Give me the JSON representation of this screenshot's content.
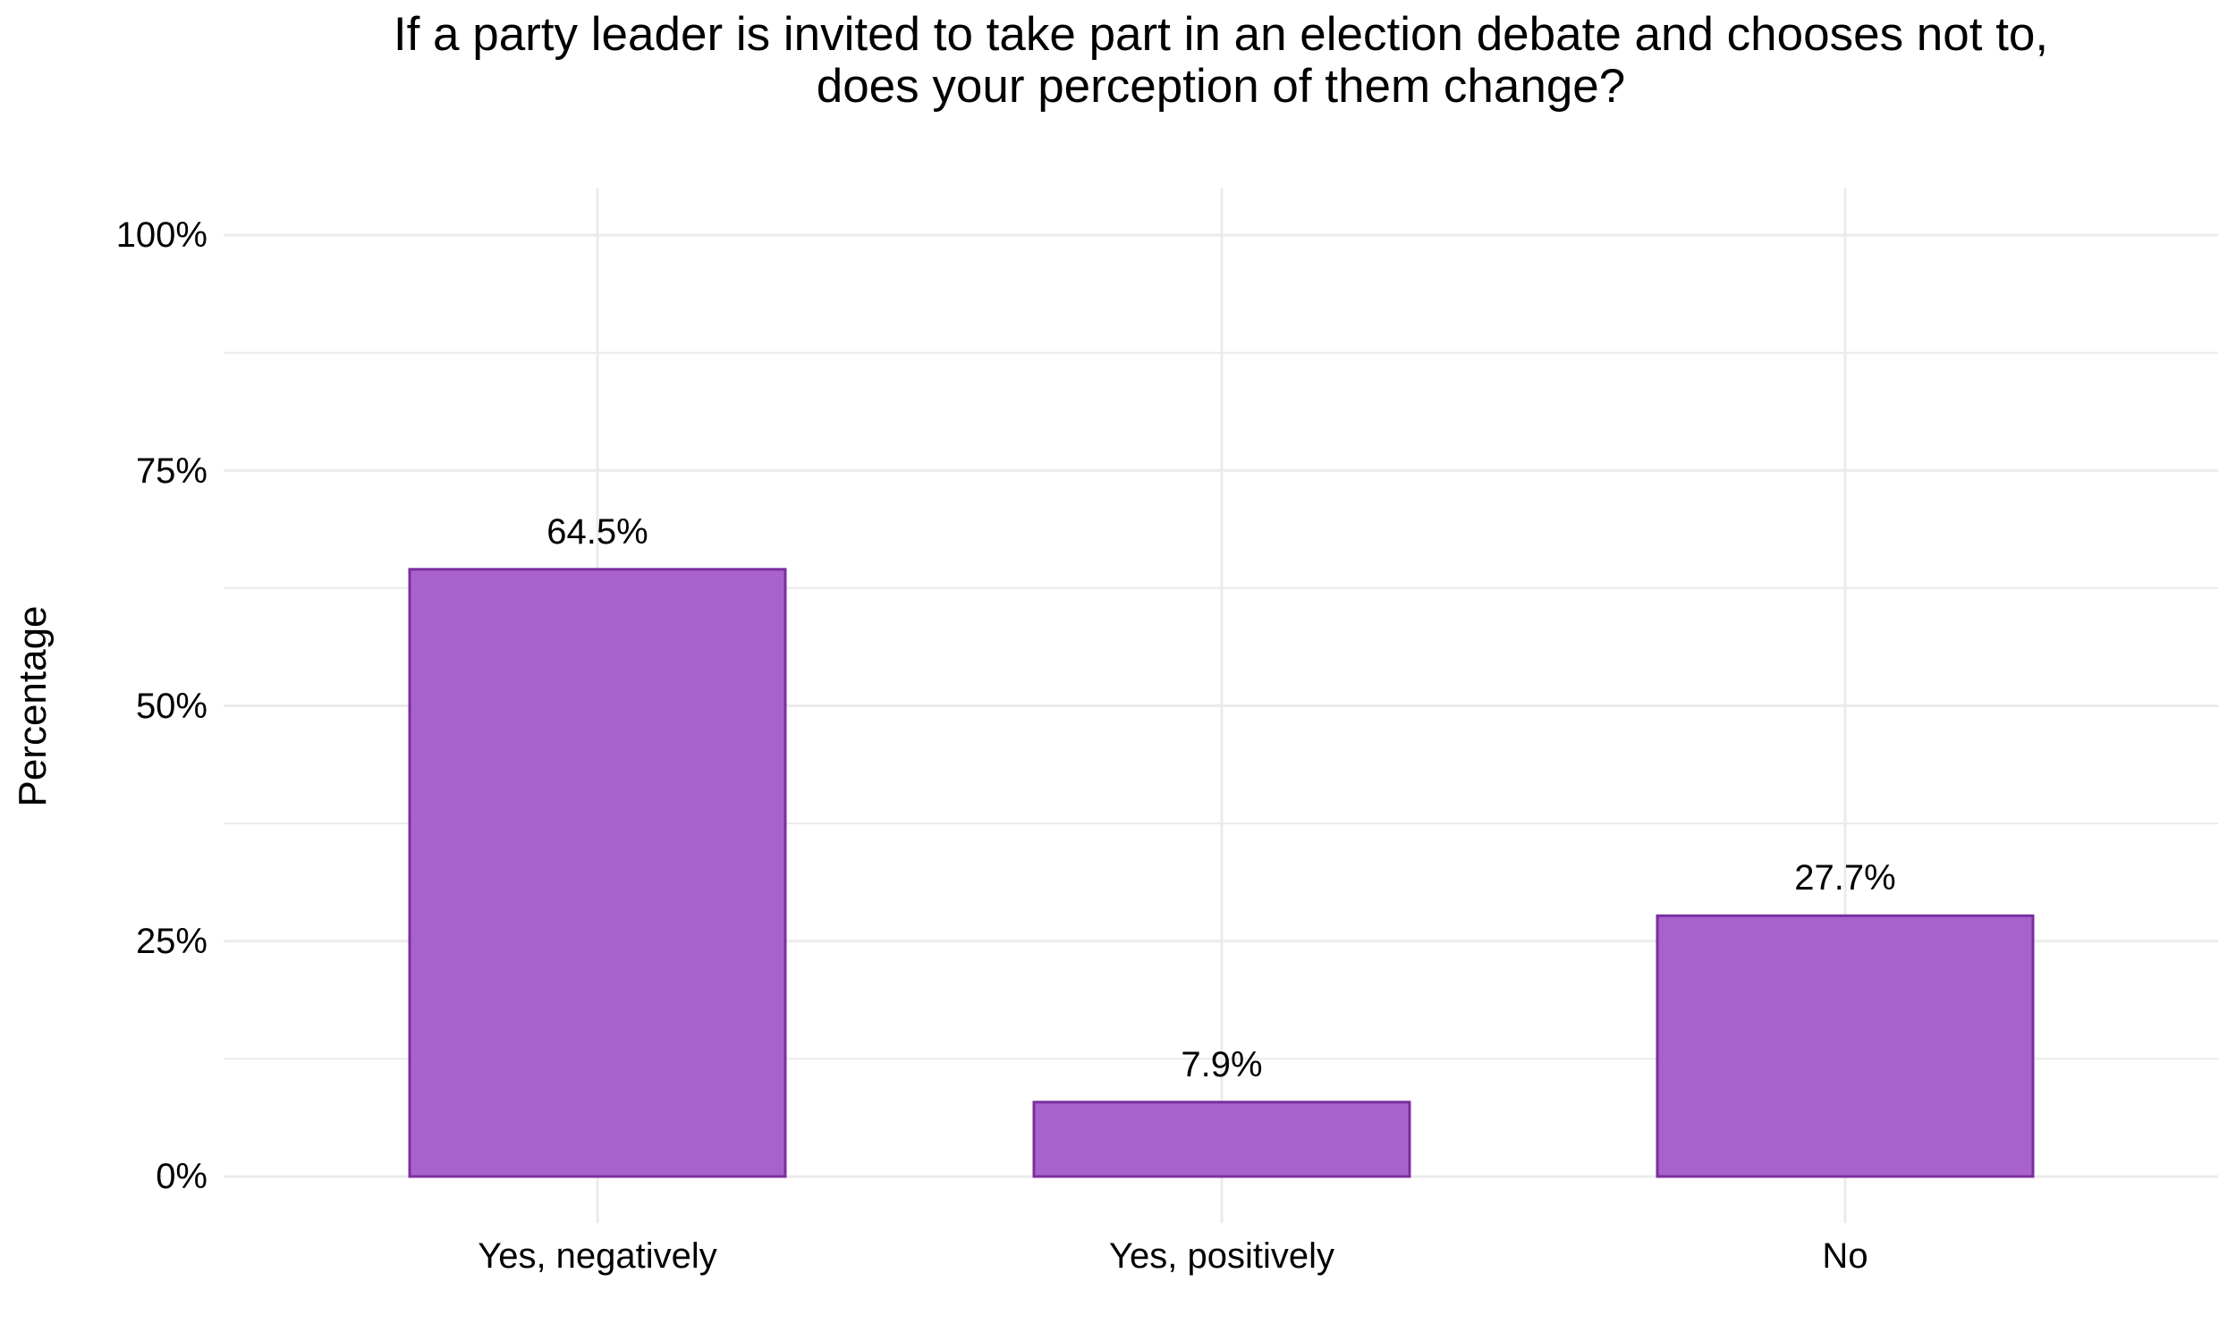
{
  "title": {
    "line1": "If a party leader is invited to take part in an election debate and chooses not to,",
    "line2": "does your perception of them change?"
  },
  "axes": {
    "y_title": "Percentage",
    "y_ticks": [
      "0%",
      "25%",
      "50%",
      "75%",
      "100%"
    ],
    "x_ticks": [
      "Yes, negatively",
      "Yes, positively",
      "No"
    ]
  },
  "bars": [
    {
      "category": "Yes, negatively",
      "value": 64.5,
      "label": "64.5%"
    },
    {
      "category": "Yes, positively",
      "value": 7.9,
      "label": "7.9%"
    },
    {
      "category": "No",
      "value": 27.7,
      "label": "27.7%"
    }
  ],
  "colors": {
    "bar_fill": "#A962CC",
    "bar_border": "#7B2FA0",
    "grid": "#EBEBEB",
    "background": "#FFFFFF",
    "text": "#000000"
  },
  "chart_data": {
    "type": "bar",
    "title": "If a party leader is invited to take part in an election debate and chooses not to, does your perception of them change?",
    "categories": [
      "Yes, negatively",
      "Yes, positively",
      "No"
    ],
    "values": [
      64.5,
      7.9,
      27.7
    ],
    "data_labels": [
      "64.5%",
      "7.9%",
      "27.7%"
    ],
    "xlabel": "",
    "ylabel": "Percentage",
    "ylim": [
      0,
      100
    ],
    "yticks": [
      0,
      25,
      50,
      75,
      100
    ],
    "ytick_labels": [
      "0%",
      "25%",
      "50%",
      "75%",
      "100%"
    ],
    "grid": true,
    "legend": null
  }
}
